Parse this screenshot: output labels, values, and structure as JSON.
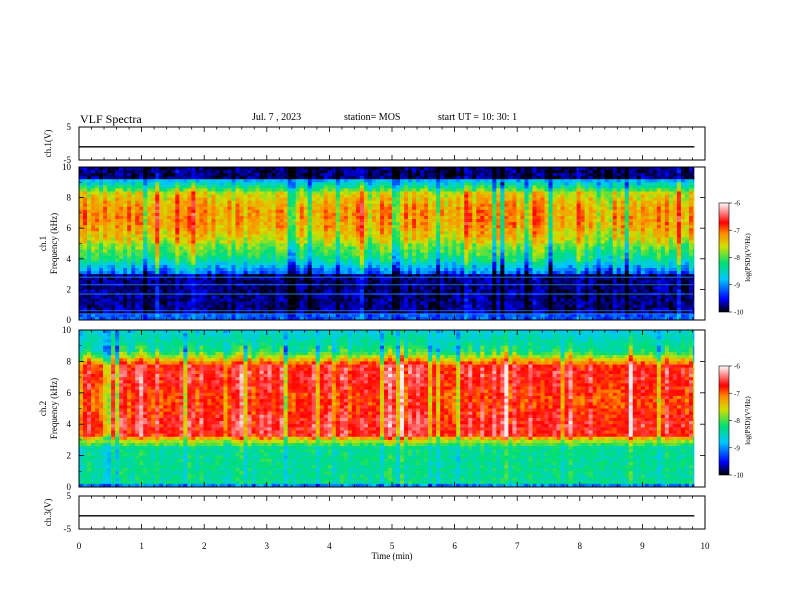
{
  "header": {
    "title": "VLF Spectra",
    "date": "Jul. 7 , 2023",
    "station": "station= MOS",
    "start": "start UT = 10: 30: 1"
  },
  "chart_data": [
    {
      "type": "line",
      "panel": "ch1-voltage",
      "ylabel": "ch.1(V)",
      "ylim": [
        -5,
        5
      ],
      "y_ticks": [
        "5",
        "-5"
      ],
      "series": [
        {
          "x": [
            0,
            9.83
          ],
          "values": [
            -1,
            -1
          ]
        }
      ]
    },
    {
      "type": "heatmap",
      "panel": "ch1-spectrogram",
      "ylabel_line1": "ch.1",
      "ylabel_line2": "Frequency (kHz)",
      "ylim": [
        0,
        10
      ],
      "y_ticks": [
        "0",
        "2",
        "4",
        "6",
        "8",
        "10"
      ],
      "colorbar": {
        "label": "log(PSD)(V²/Hz)",
        "range": [
          -10,
          -6
        ],
        "ticks": [
          "-6",
          "-7",
          "-8",
          "-9",
          "-10"
        ]
      }
    },
    {
      "type": "heatmap",
      "panel": "ch2-spectrogram",
      "ylabel_line1": "ch.2",
      "ylabel_line2": "Frequency (kHz)",
      "ylim": [
        0,
        10
      ],
      "y_ticks": [
        "0",
        "2",
        "4",
        "6",
        "8",
        "10"
      ],
      "colorbar": {
        "label": "log(PSD)(V²/Hz)",
        "range": [
          -10,
          -6
        ],
        "ticks": [
          "-6",
          "-7",
          "-8",
          "-9",
          "-10"
        ]
      }
    },
    {
      "type": "line",
      "panel": "ch3-voltage",
      "ylabel": "ch.3(V)",
      "ylim": [
        -5,
        5
      ],
      "y_ticks": [
        "5",
        "-5"
      ],
      "series": [
        {
          "x": [
            0,
            9.83
          ],
          "values": [
            -1,
            -1
          ]
        }
      ]
    }
  ],
  "x_axis": {
    "label": "Time (min)",
    "range": [
      0,
      10
    ],
    "ticks": [
      "0",
      "1",
      "2",
      "3",
      "4",
      "5",
      "6",
      "7",
      "8",
      "9",
      "10"
    ]
  }
}
